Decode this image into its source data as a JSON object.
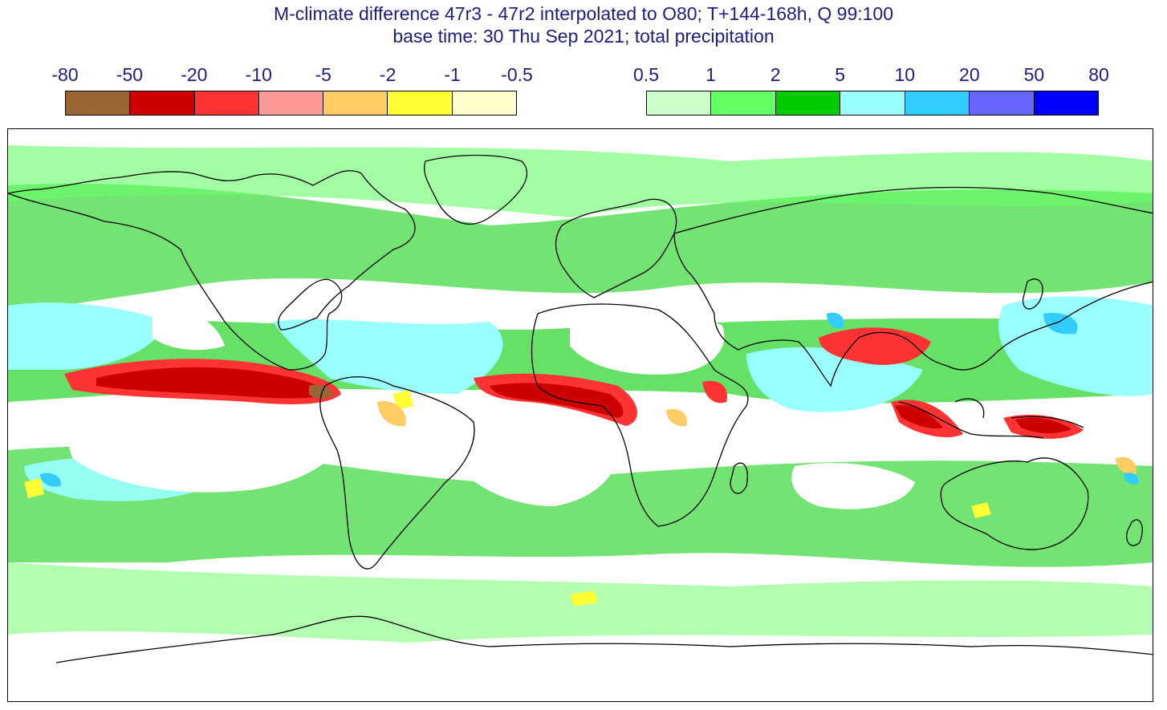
{
  "title": {
    "line1": "M-climate difference 47r3 - 47r2 interpolated to O80; T+144-168h, Q 99:100",
    "line2": "base time: 30 Thu Sep 2021; total precipitation"
  },
  "legend_negative": {
    "labels": [
      "-80",
      "-50",
      "-20",
      "-10",
      "-5",
      "-2",
      "-1",
      "-0.5"
    ],
    "colors": [
      "#996633",
      "#cc0000",
      "#ff3333",
      "#ff9999",
      "#ffcc66",
      "#ffff33",
      "#ffffcc"
    ]
  },
  "legend_positive": {
    "labels": [
      "0.5",
      "1",
      "2",
      "5",
      "10",
      "20",
      "50",
      "80"
    ],
    "colors": [
      "#ccffcc",
      "#66ff66",
      "#00cc00",
      "#99ffff",
      "#33ccff",
      "#6666ff",
      "#0000ff"
    ]
  },
  "map": {
    "projection": "plate carree",
    "variable": "total precipitation difference"
  }
}
